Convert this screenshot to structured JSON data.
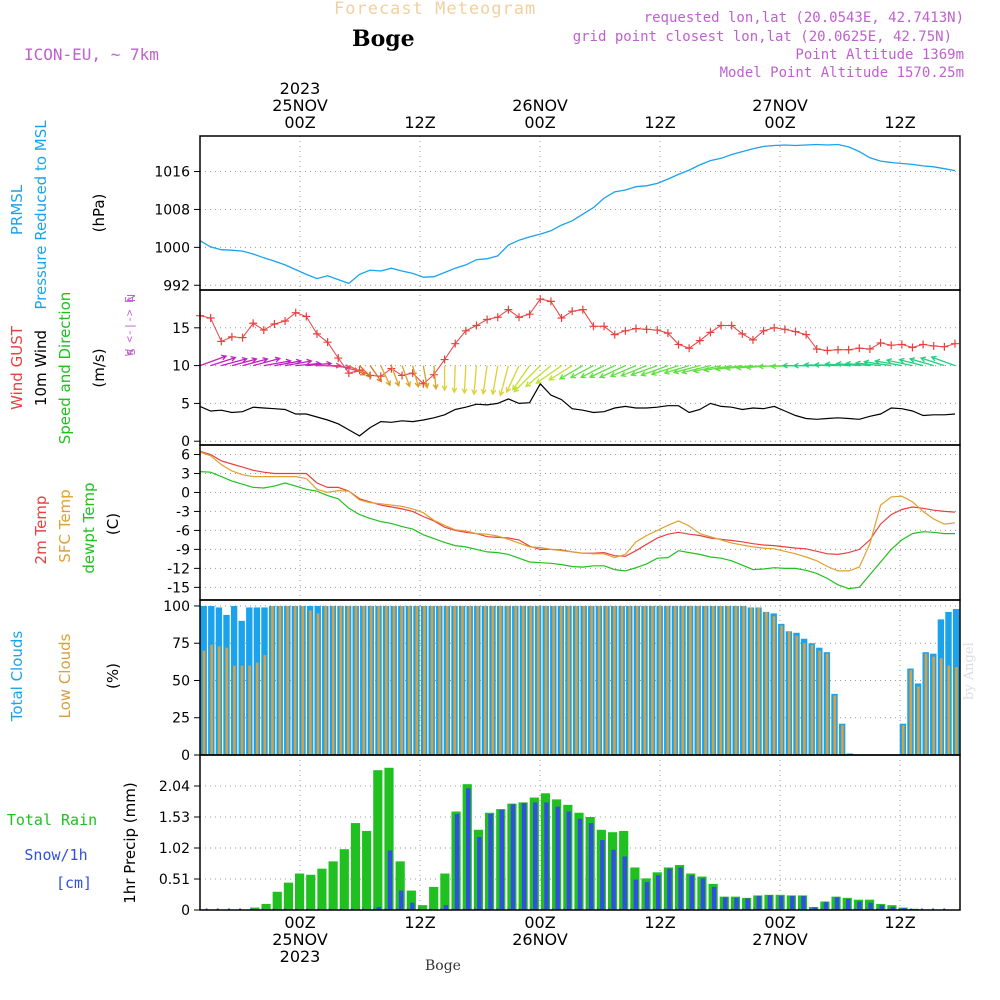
{
  "header": {
    "title": "Forecast Meteogram",
    "location": "Boge",
    "model": "ICON-EU, ~ 7km",
    "requested": "requested lon,lat (20.0543E, 42.7413N)",
    "closest": "grid point closest lon,lat (20.0625E, 42.75N)",
    "point_alt": "Point Altitude 1369m",
    "model_alt": "Model Point Altitude 1570.25m",
    "footer_name": "Boge",
    "watermark": "by Angel"
  },
  "time_axis": {
    "start": "2023-11-24T14:00Z",
    "hours": 66,
    "top_labels": [
      {
        "hour": 10,
        "lines": [
          "2023",
          "25NOV",
          "00Z"
        ]
      },
      {
        "hour": 22,
        "lines": [
          "12Z"
        ]
      },
      {
        "hour": 34,
        "lines": [
          "26NOV",
          "00Z"
        ]
      },
      {
        "hour": 46,
        "lines": [
          "12Z"
        ]
      },
      {
        "hour": 58,
        "lines": [
          "27NOV",
          "00Z"
        ]
      },
      {
        "hour": 70,
        "lines": [
          "12Z"
        ]
      }
    ],
    "bottom_labels": [
      {
        "hour": 10,
        "lines": [
          "00Z",
          "25NOV",
          "2023"
        ]
      },
      {
        "hour": 22,
        "lines": [
          "12Z"
        ]
      },
      {
        "hour": 34,
        "lines": [
          "00Z",
          "26NOV"
        ]
      },
      {
        "hour": 46,
        "lines": [
          "12Z"
        ]
      },
      {
        "hour": 58,
        "lines": [
          "00Z",
          "27NOV"
        ]
      },
      {
        "hour": 70,
        "lines": [
          "12Z"
        ]
      }
    ]
  },
  "colors": {
    "pressure": "#1aa3ec",
    "gust": "#e84040",
    "wind": "#000000",
    "temp": "#e84040",
    "sfc": "#e0a030",
    "dewpt": "#20c020",
    "total_clouds": "#1aa3ec",
    "low_clouds": "#d8a040",
    "rain": "#20c020",
    "snow": "#3050e0",
    "grid": "#999999",
    "axis_labels_purple": "#c060d0"
  },
  "chart_data": [
    {
      "type": "line",
      "panel": "pressure",
      "ylabels": [
        "PRMSL",
        "Pressure Reduced to MSL",
        "(hPa)"
      ],
      "yticks": [
        992,
        1000,
        1008,
        1016
      ],
      "ylim": [
        991,
        1023.5
      ],
      "series": [
        {
          "name": "PRMSL",
          "values": [
            1001.4,
            1000.1,
            999.5,
            999.4,
            999.2,
            998.6,
            997.8,
            997.1,
            996.3,
            995.3,
            994.3,
            993.4,
            994.0,
            993.2,
            992.4,
            994.3,
            995.2,
            995.0,
            995.6,
            995.0,
            994.5,
            993.7,
            993.8,
            994.7,
            995.6,
            996.3,
            997.4,
            997.6,
            998.2,
            1000.5,
            1001.5,
            1002.2,
            1002.8,
            1003.5,
            1004.7,
            1005.6,
            1007.0,
            1008.4,
            1010.4,
            1011.7,
            1012.1,
            1012.8,
            1013.0,
            1013.5,
            1014.4,
            1015.4,
            1016.3,
            1017.4,
            1018.3,
            1018.8,
            1019.6,
            1020.2,
            1020.8,
            1021.3,
            1021.5,
            1021.6,
            1021.5,
            1021.6,
            1021.7,
            1021.6,
            1021.7,
            1021.2,
            1020.2,
            1018.9,
            1018.2,
            1017.9,
            1017.7,
            1017.5,
            1017.2,
            1017.0,
            1016.6,
            1016.2
          ]
        }
      ]
    },
    {
      "type": "line",
      "panel": "wind",
      "ylabels": [
        "Wind GUST",
        "10m Wind",
        "Speed and Direction",
        "(m/s)"
      ],
      "compass": [
        "N",
        "W <-|-> E",
        "S"
      ],
      "yticks": [
        0,
        5,
        10,
        15
      ],
      "ylim": [
        -0.5,
        20
      ],
      "series": [
        {
          "name": "Wind GUST",
          "values": [
            16.6,
            16.3,
            13.2,
            13.8,
            13.7,
            15.6,
            14.7,
            15.5,
            15.9,
            17.0,
            16.5,
            14.2,
            13.1,
            11.0,
            9.0,
            9.4,
            8.7,
            8.6,
            9.6,
            8.7,
            9.0,
            7.6,
            8.8,
            10.8,
            12.9,
            14.6,
            15.3,
            16.1,
            16.4,
            17.4,
            16.4,
            16.8,
            18.8,
            18.5,
            16.3,
            17.2,
            17.4,
            15.2,
            15.2,
            14.1,
            14.6,
            14.9,
            14.8,
            14.7,
            14.3,
            12.8,
            12.3,
            13.3,
            14.4,
            15.3,
            15.3,
            14.2,
            13.4,
            14.6,
            15.0,
            14.8,
            14.5,
            14.1,
            12.2,
            12.0,
            12.1,
            12.1,
            12.3,
            12.2,
            13.0,
            12.7,
            12.8,
            12.4,
            12.8,
            12.6,
            12.5,
            12.9
          ]
        },
        {
          "name": "10m Wind",
          "values": [
            4.6,
            4.0,
            4.1,
            3.8,
            3.9,
            4.5,
            4.4,
            4.3,
            4.2,
            3.6,
            3.6,
            3.2,
            2.8,
            2.3,
            1.5,
            0.7,
            1.8,
            2.6,
            2.5,
            2.7,
            2.6,
            2.8,
            3.1,
            3.5,
            4.2,
            4.5,
            4.9,
            4.8,
            5.0,
            5.6,
            5.0,
            5.1,
            7.6,
            6.1,
            5.5,
            4.3,
            4.1,
            3.8,
            3.9,
            4.4,
            4.6,
            4.4,
            4.4,
            4.5,
            4.7,
            4.7,
            3.8,
            4.2,
            5.0,
            4.6,
            4.5,
            4.2,
            4.4,
            4.3,
            4.6,
            4.0,
            3.4,
            3.0,
            2.9,
            3.0,
            3.1,
            3.0,
            2.9,
            3.3,
            3.6,
            4.4,
            4.3,
            4.0,
            3.4,
            3.5,
            3.5,
            3.6
          ]
        }
      ],
      "direction_deg": [
        250,
        252,
        255,
        255,
        255,
        255,
        260,
        260,
        260,
        265,
        265,
        270,
        275,
        285,
        300,
        315,
        325,
        335,
        340,
        340,
        345,
        350,
        355,
        0,
        2,
        3,
        5,
        8,
        10,
        15,
        25,
        35,
        45,
        50,
        55,
        58,
        60,
        62,
        63,
        65,
        65,
        67,
        68,
        70,
        70,
        72,
        73,
        75,
        76,
        78,
        80,
        82,
        84,
        85,
        86,
        88,
        88,
        90,
        90,
        92,
        92,
        94,
        95,
        95,
        96,
        98,
        100,
        102,
        104,
        106,
        108,
        110
      ]
    },
    {
      "type": "line",
      "panel": "temperature",
      "ylabels": [
        "2m Temp",
        "SFC Temp",
        "dewpt Temp",
        "(C)"
      ],
      "yticks": [
        -15,
        -12,
        -9,
        -6,
        -3,
        0,
        3,
        6
      ],
      "ylim": [
        -17,
        7.5
      ],
      "series": [
        {
          "name": "2m Temp",
          "values": [
            6.5,
            6.0,
            5.0,
            4.5,
            4.0,
            3.5,
            3.2,
            3.0,
            3.0,
            3.0,
            3.0,
            1.5,
            0.8,
            0.8,
            0.2,
            -1.0,
            -1.5,
            -2.0,
            -2.3,
            -2.6,
            -3.0,
            -3.8,
            -4.5,
            -5.5,
            -6.0,
            -6.3,
            -6.5,
            -7.0,
            -7.1,
            -7.2,
            -7.5,
            -8.5,
            -9.0,
            -9.0,
            -9.1,
            -9.4,
            -9.6,
            -9.6,
            -9.5,
            -10.0,
            -10.1,
            -9.2,
            -8.2,
            -7.2,
            -6.6,
            -6.3,
            -6.6,
            -6.8,
            -7.2,
            -7.4,
            -7.6,
            -7.8,
            -8.1,
            -8.3,
            -8.4,
            -8.6,
            -8.8,
            -8.9,
            -9.3,
            -9.7,
            -9.8,
            -9.5,
            -9.0,
            -7.5,
            -5.0,
            -3.5,
            -2.7,
            -2.3,
            -2.5,
            -2.8,
            -3.0,
            -3.1
          ]
        },
        {
          "name": "SFC Temp",
          "values": [
            6.4,
            5.8,
            4.4,
            3.4,
            2.8,
            2.5,
            2.5,
            2.5,
            2.5,
            2.5,
            2.2,
            0.5,
            0.0,
            0.3,
            0.2,
            -1.2,
            -1.6,
            -1.8,
            -2.0,
            -2.2,
            -2.6,
            -3.2,
            -4.4,
            -5.2,
            -5.9,
            -6.1,
            -6.5,
            -6.6,
            -6.9,
            -7.4,
            -8.0,
            -8.6,
            -8.7,
            -9.0,
            -9.2,
            -9.4,
            -9.6,
            -9.7,
            -9.7,
            -10.3,
            -9.8,
            -7.8,
            -6.8,
            -6.0,
            -5.2,
            -4.5,
            -5.3,
            -6.5,
            -7.0,
            -7.5,
            -8.0,
            -8.3,
            -8.6,
            -8.8,
            -8.9,
            -9.3,
            -9.7,
            -10.2,
            -10.8,
            -11.7,
            -12.4,
            -12.4,
            -11.8,
            -8.1,
            -2.0,
            -0.7,
            -0.6,
            -1.5,
            -3.0,
            -4.2,
            -5.0,
            -4.8
          ]
        },
        {
          "name": "dewpt Temp",
          "values": [
            3.3,
            3.2,
            2.5,
            1.8,
            1.3,
            0.8,
            0.7,
            1.0,
            1.5,
            1.0,
            0.5,
            0.2,
            -0.5,
            -1.0,
            -2.5,
            -3.5,
            -4.1,
            -4.6,
            -4.9,
            -5.4,
            -5.8,
            -6.7,
            -7.3,
            -7.9,
            -8.4,
            -8.6,
            -9.0,
            -9.4,
            -9.5,
            -9.8,
            -10.4,
            -11.0,
            -11.1,
            -11.2,
            -11.4,
            -11.7,
            -11.8,
            -11.6,
            -11.6,
            -12.2,
            -12.4,
            -11.9,
            -11.3,
            -10.4,
            -10.3,
            -9.2,
            -9.5,
            -9.8,
            -10.2,
            -10.4,
            -10.8,
            -11.5,
            -12.2,
            -12.1,
            -11.9,
            -12.0,
            -12.0,
            -12.3,
            -12.8,
            -13.6,
            -14.6,
            -15.2,
            -15.0,
            -13.0,
            -11.0,
            -9.0,
            -7.5,
            -6.5,
            -6.2,
            -6.3,
            -6.5,
            -6.5
          ]
        }
      ]
    },
    {
      "type": "bar",
      "panel": "clouds",
      "ylabels": [
        "Total Clouds",
        "Low Clouds",
        "(%)"
      ],
      "yticks": [
        0,
        25,
        50,
        75,
        100
      ],
      "ylim": [
        0,
        104
      ],
      "series": [
        {
          "name": "Total Clouds",
          "values": [
            100,
            100,
            99,
            94,
            100,
            90,
            99,
            99,
            99,
            100,
            100,
            100,
            100,
            100,
            100,
            100,
            100,
            100,
            100,
            100,
            100,
            100,
            100,
            100,
            100,
            100,
            100,
            100,
            100,
            100,
            100,
            100,
            100,
            100,
            100,
            100,
            100,
            100,
            100,
            100,
            100,
            100,
            100,
            100,
            100,
            100,
            100,
            100,
            100,
            100,
            100,
            100,
            100,
            100,
            100,
            100,
            100,
            100,
            100,
            100,
            100,
            100,
            100,
            100,
            100,
            100,
            100,
            100,
            100,
            100,
            100,
            100,
            99,
            99,
            96,
            95,
            88,
            83,
            82,
            78,
            75,
            72,
            69,
            41,
            21,
            1,
            0,
            0,
            0,
            0,
            0,
            0,
            21,
            58,
            48,
            69,
            68,
            91,
            96,
            98
          ]
        },
        {
          "name": "Low Clouds",
          "values": [
            70,
            74,
            73,
            72,
            60,
            60,
            60,
            62,
            67,
            100,
            100,
            100,
            100,
            100,
            97,
            95,
            100,
            100,
            100,
            100,
            100,
            100,
            100,
            100,
            100,
            100,
            100,
            100,
            100,
            100,
            100,
            100,
            100,
            100,
            100,
            100,
            100,
            100,
            100,
            100,
            100,
            100,
            100,
            100,
            100,
            100,
            100,
            100,
            100,
            100,
            100,
            100,
            100,
            100,
            100,
            100,
            100,
            100,
            100,
            100,
            100,
            100,
            100,
            100,
            100,
            100,
            100,
            100,
            100,
            100,
            100,
            100,
            99,
            99,
            96,
            93,
            87,
            83,
            80,
            75,
            74,
            70,
            68,
            40,
            20,
            0,
            0,
            0,
            0,
            0,
            0,
            0,
            20,
            57,
            46,
            68,
            66,
            65,
            60,
            59
          ]
        }
      ]
    },
    {
      "type": "bar",
      "panel": "precip",
      "ylabels": [
        "1hr Precip (mm)"
      ],
      "legend_left": [
        "Total Rain",
        "Snow/1h",
        "[cm]"
      ],
      "yticks": [
        0,
        0.51,
        1.02,
        1.53,
        2.04
      ],
      "ylim": [
        0,
        2.55
      ],
      "series": [
        {
          "name": "Total Rain",
          "values": [
            0,
            0,
            0,
            0,
            0.04,
            0.1,
            0.3,
            0.45,
            0.6,
            0.58,
            0.68,
            0.8,
            1.0,
            1.43,
            1.3,
            2.3,
            2.34,
            0.8,
            0.32,
            0.08,
            0.38,
            0.6,
            1.62,
            2.07,
            1.32,
            1.6,
            1.66,
            1.75,
            1.77,
            1.85,
            1.92,
            1.82,
            1.73,
            1.6,
            1.53,
            1.32,
            1.28,
            1.3,
            0.7,
            0.52,
            0.62,
            0.7,
            0.74,
            0.6,
            0.55,
            0.43,
            0.22,
            0.22,
            0.2,
            0.24,
            0.25,
            0.25,
            0.24,
            0.24,
            0.05,
            0.14,
            0.22,
            0.2,
            0.17,
            0.17,
            0.1,
            0.08,
            0.04,
            0.02,
            0.01,
            0,
            0
          ]
        },
        {
          "name": "Snow/1h",
          "values": [
            0,
            0,
            0,
            0,
            0,
            0,
            0,
            0,
            0,
            0,
            0,
            0,
            0,
            0,
            0,
            0.05,
            0.98,
            0.32,
            0.12,
            0,
            0,
            0.08,
            1.58,
            2.0,
            1.2,
            1.58,
            1.65,
            1.74,
            1.76,
            1.77,
            1.77,
            1.7,
            1.62,
            1.5,
            1.43,
            1.15,
            0.99,
            0.88,
            0.5,
            0.46,
            0.57,
            0.68,
            0.7,
            0.57,
            0.52,
            0.38,
            0.21,
            0.2,
            0.19,
            0.23,
            0.24,
            0.23,
            0.23,
            0.23,
            0.04,
            0.13,
            0.21,
            0.18,
            0.14,
            0.12,
            0.08,
            0.05,
            0.03,
            0.01,
            0,
            0,
            0
          ]
        }
      ]
    }
  ]
}
